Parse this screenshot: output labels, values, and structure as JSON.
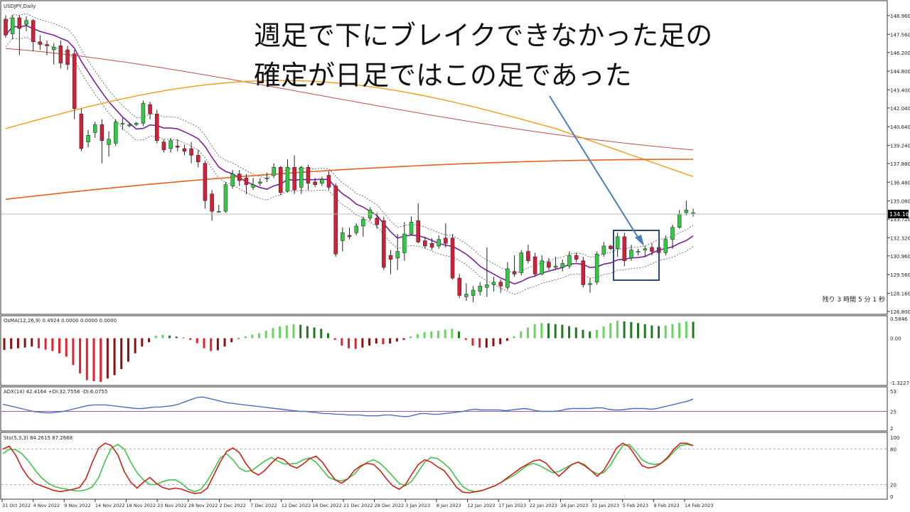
{
  "symbol_label": "USDJPY,Daily",
  "current_price_label": "134.164",
  "remaining_time_label": "残り 3 時間 5 分 1 秒",
  "annotation": {
    "line1": "週足で下にブレイクできなかった足の",
    "line2": "確定が日足ではこの足であった"
  },
  "colors": {
    "up_candle": "#2ecc40",
    "down_candle": "#d0203a",
    "ma_purple": "#7b1fa2",
    "ma_brown": "#c0504d",
    "ma_orange": "#f39c12",
    "ma_dark_orange": "#e8601c",
    "annotation_arrow": "#4a7cc0",
    "adx_line": "#4a6fbf",
    "sto_main": "#d0201a",
    "sto_signal": "#44c24a",
    "osma_pos_light": "#66d65c",
    "osma_pos_dark": "#1f7a1f",
    "osma_neg_light": "#e8202a",
    "osma_neg_dark": "#8b1010"
  },
  "chart_data": [
    {
      "type": "candlestick",
      "title": "USDJPY,Daily",
      "y_ticks": [
        "148.960",
        "147.560",
        "146.200",
        "144.800",
        "143.400",
        "142.040",
        "140.640",
        "139.240",
        "137.880",
        "136.480",
        "135.080",
        "133.720",
        "132.320",
        "130.960",
        "129.560",
        "128.160",
        "126.800"
      ],
      "ylim": [
        126.8,
        148.96
      ],
      "x_ticks": [
        "31 Oct 2022",
        "4 Nov 2022",
        "9 Nov 2022",
        "14 Nov 2022",
        "18 Nov 2022",
        "23 Nov 2022",
        "28 Nov 2022",
        "2 Dec 2022",
        "7 Dec 2022",
        "12 Dec 2022",
        "16 Dec 2022",
        "21 Dec 2022",
        "28 Dec 2022",
        "3 Jan 2023",
        "8 Jan 2023",
        "12 Jan 2023",
        "17 Jan 2023",
        "22 Jan 2023",
        "26 Jan 2023",
        "31 Jan 2023",
        "5 Feb 2023",
        "9 Feb 2023",
        "14 Feb 2023"
      ],
      "candles": [
        [
          148.7,
          147.5,
          149.0,
          147.3
        ],
        [
          147.6,
          148.8,
          149.0,
          147.2
        ],
        [
          148.8,
          148.0,
          149.0,
          146.0
        ],
        [
          148.3,
          148.6,
          148.9,
          147.8
        ],
        [
          148.6,
          147.0,
          148.7,
          146.3
        ],
        [
          147.0,
          146.8,
          147.5,
          146.4
        ],
        [
          146.8,
          146.7,
          147.1,
          146.0
        ],
        [
          146.4,
          146.6,
          146.9,
          145.3
        ],
        [
          146.7,
          145.4,
          147.1,
          145.0
        ],
        [
          146.4,
          145.3,
          146.7,
          144.9
        ],
        [
          146.1,
          142.0,
          146.4,
          141.2
        ],
        [
          141.6,
          139.0,
          142.0,
          138.8
        ],
        [
          139.5,
          140.0,
          140.4,
          139.1
        ],
        [
          140.2,
          140.8,
          141.0,
          139.8
        ],
        [
          140.8,
          139.6,
          141.2,
          137.9
        ],
        [
          139.3,
          139.7,
          140.3,
          138.4
        ],
        [
          139.4,
          141.0,
          141.2,
          139.2
        ],
        [
          140.9,
          140.9,
          141.3,
          140.4
        ],
        [
          140.7,
          140.8,
          140.9,
          140.6
        ],
        [
          140.8,
          140.9,
          141.0,
          140.7
        ],
        [
          140.9,
          142.4,
          142.6,
          140.7
        ],
        [
          142.3,
          141.6,
          142.5,
          141.2
        ],
        [
          141.6,
          139.6,
          141.9,
          139.4
        ],
        [
          139.5,
          138.9,
          139.7,
          138.7
        ],
        [
          139.0,
          139.6,
          139.8,
          138.7
        ],
        [
          139.2,
          139.1,
          139.7,
          138.8
        ],
        [
          139.0,
          138.8,
          139.3,
          138.5
        ],
        [
          139.0,
          138.5,
          139.5,
          137.9
        ],
        [
          138.5,
          138.0,
          138.9,
          137.6
        ],
        [
          137.9,
          135.1,
          138.1,
          134.5
        ],
        [
          135.6,
          134.3,
          135.9,
          133.6
        ],
        [
          134.3,
          134.3,
          134.8,
          134.2
        ],
        [
          134.3,
          136.3,
          136.5,
          134.2
        ],
        [
          136.2,
          137.1,
          137.4,
          136.0
        ],
        [
          137.1,
          136.6,
          137.4,
          136.2
        ],
        [
          136.8,
          136.3,
          137.1,
          135.6
        ],
        [
          136.1,
          136.3,
          136.8,
          135.9
        ],
        [
          136.4,
          136.5,
          136.8,
          136.2
        ],
        [
          136.8,
          136.8,
          137.2,
          136.5
        ],
        [
          137.0,
          137.6,
          137.9,
          136.8
        ],
        [
          137.6,
          135.7,
          137.7,
          135.5
        ],
        [
          135.8,
          137.6,
          138.2,
          135.7
        ],
        [
          137.6,
          135.9,
          138.5,
          135.6
        ],
        [
          136.1,
          137.6,
          137.7,
          135.6
        ],
        [
          137.6,
          136.4,
          137.8,
          135.9
        ],
        [
          136.5,
          136.3,
          136.8,
          136.1
        ],
        [
          136.4,
          136.7,
          136.9,
          136.2
        ],
        [
          137.0,
          136.1,
          137.3,
          135.9
        ],
        [
          136.2,
          131.1,
          136.4,
          130.9
        ],
        [
          132.1,
          132.7,
          133.1,
          131.3
        ],
        [
          132.5,
          132.4,
          133.1,
          132.2
        ],
        [
          132.7,
          133.2,
          133.4,
          132.5
        ],
        [
          133.2,
          133.7,
          133.9,
          132.4
        ],
        [
          133.8,
          134.4,
          134.6,
          133.6
        ],
        [
          133.8,
          133.3,
          134.2,
          133.0
        ],
        [
          133.6,
          130.1,
          133.9,
          129.9
        ],
        [
          131.0,
          130.7,
          131.4,
          129.6
        ],
        [
          130.8,
          131.3,
          132.6,
          129.9
        ],
        [
          131.2,
          132.6,
          133.5,
          130.6
        ],
        [
          132.6,
          133.5,
          133.9,
          132.5
        ],
        [
          133.6,
          132.0,
          134.9,
          131.9
        ],
        [
          132.1,
          131.7,
          132.4,
          131.5
        ],
        [
          131.9,
          131.6,
          132.3,
          131.4
        ],
        [
          131.7,
          132.2,
          132.5,
          131.5
        ],
        [
          132.3,
          131.9,
          133.4,
          131.6
        ],
        [
          132.3,
          129.3,
          132.6,
          129.2
        ],
        [
          129.3,
          128.0,
          129.6,
          127.8
        ],
        [
          127.9,
          128.1,
          128.9,
          127.6
        ],
        [
          128.0,
          128.4,
          128.7,
          127.5
        ],
        [
          128.3,
          128.7,
          129.0,
          128.0
        ],
        [
          128.6,
          128.8,
          131.6,
          127.9
        ],
        [
          128.8,
          129.0,
          129.4,
          128.3
        ],
        [
          129.0,
          128.7,
          129.2,
          128.2
        ],
        [
          128.6,
          130.0,
          130.5,
          128.4
        ],
        [
          129.8,
          129.6,
          131.0,
          129.4
        ],
        [
          129.7,
          131.2,
          131.4,
          129.5
        ],
        [
          131.3,
          130.6,
          131.8,
          130.4
        ],
        [
          130.9,
          129.6,
          131.2,
          129.4
        ],
        [
          129.6,
          130.6,
          131.0,
          129.5
        ],
        [
          130.5,
          130.1,
          130.8,
          129.9
        ],
        [
          130.1,
          130.2,
          130.9,
          130.0
        ],
        [
          130.1,
          130.4,
          130.7,
          129.8
        ],
        [
          130.2,
          131.0,
          131.3,
          130.0
        ],
        [
          131.0,
          130.7,
          131.2,
          130.5
        ],
        [
          130.6,
          128.8,
          130.9,
          128.6
        ],
        [
          128.8,
          128.9,
          129.3,
          128.2
        ],
        [
          129.0,
          131.1,
          131.3,
          128.8
        ],
        [
          131.1,
          131.7,
          132.0,
          130.9
        ],
        [
          131.7,
          131.5,
          131.8,
          131.4
        ],
        [
          131.5,
          132.4,
          132.7,
          130.9
        ],
        [
          132.4,
          130.6,
          132.7,
          130.2
        ],
        [
          130.8,
          131.4,
          131.8,
          130.6
        ],
        [
          131.3,
          131.3,
          131.5,
          131.0
        ],
        [
          131.4,
          131.5,
          131.7,
          130.9
        ],
        [
          131.6,
          131.3,
          131.9,
          131.0
        ],
        [
          131.6,
          131.2,
          131.9,
          131.1
        ],
        [
          131.2,
          132.2,
          132.5,
          131.0
        ],
        [
          132.2,
          133.1,
          133.3,
          131.5
        ],
        [
          133.1,
          134.1,
          134.4,
          133.0
        ],
        [
          134.2,
          134.4,
          135.1,
          134.0
        ],
        [
          134.1,
          134.2,
          134.5,
          133.9
        ]
      ]
    },
    {
      "type": "bar",
      "title": "OsMA(12,26,9) 0.4924 0.0000 0.0000 0.0000",
      "y_ticks": [
        "0.5846",
        "0.00",
        "-1.3227"
      ],
      "ylim": [
        -1.3227,
        0.5846
      ],
      "values": [
        -0.35,
        -0.32,
        -0.3,
        -0.28,
        -0.25,
        -0.3,
        -0.34,
        -0.38,
        -0.45,
        -0.55,
        -0.8,
        -1.05,
        -1.25,
        -1.28,
        -1.3,
        -1.2,
        -1.1,
        -0.92,
        -0.7,
        -0.45,
        -0.25,
        -0.12,
        0.08,
        0.1,
        0.08,
        0.05,
        0.02,
        -0.05,
        -0.15,
        -0.3,
        -0.38,
        -0.36,
        -0.25,
        -0.12,
        -0.02,
        0.06,
        0.1,
        0.15,
        0.22,
        0.3,
        0.35,
        0.38,
        0.42,
        0.4,
        0.36,
        0.32,
        0.28,
        0.15,
        -0.05,
        -0.22,
        -0.3,
        -0.32,
        -0.28,
        -0.22,
        -0.16,
        -0.18,
        -0.16,
        -0.1,
        -0.05,
        0.05,
        0.12,
        0.18,
        0.2,
        0.22,
        0.26,
        0.28,
        0.2,
        -0.05,
        -0.22,
        -0.28,
        -0.28,
        -0.24,
        -0.18,
        -0.08,
        0.06,
        0.2,
        0.32,
        0.42,
        0.45,
        0.44,
        0.42,
        0.4,
        0.36,
        0.32,
        0.25,
        0.2,
        0.25,
        0.35,
        0.45,
        0.52,
        0.5,
        0.48,
        0.45,
        0.42,
        0.38,
        0.36,
        0.38,
        0.42,
        0.46,
        0.5,
        0.49
      ]
    },
    {
      "type": "line",
      "title": "ADX(14) 42.4164 +DI:32.7558 -DI:6.0755",
      "y_ticks": [
        "53",
        "25",
        "2"
      ],
      "ylim": [
        2,
        53
      ],
      "reference_line": 25,
      "values": [
        35,
        33,
        31,
        29,
        27,
        25,
        24,
        23,
        23,
        24,
        25,
        27,
        29,
        31,
        33,
        34,
        34,
        34,
        33,
        32,
        31,
        30,
        29,
        29,
        30,
        31,
        31,
        32,
        33,
        35,
        38,
        41,
        44,
        45,
        43,
        41,
        39,
        37,
        36,
        35,
        34,
        33,
        32,
        31,
        30,
        29,
        28,
        27,
        26,
        25,
        25,
        24,
        23,
        22,
        22,
        21,
        21,
        20,
        20,
        20,
        19,
        19,
        19,
        20,
        20,
        19,
        18,
        18,
        20,
        22,
        22,
        21,
        21,
        22,
        23,
        24,
        25,
        27,
        28,
        27,
        27,
        27,
        27,
        26,
        27,
        28,
        29,
        28,
        26,
        25,
        25,
        25,
        26,
        28,
        29,
        29,
        29,
        29,
        30,
        30,
        28,
        27,
        27,
        28,
        29,
        29,
        29,
        28,
        29,
        31,
        33,
        35,
        37,
        39,
        42
      ]
    },
    {
      "type": "line",
      "title": "Sto(5,3,3) 84.2615 87.2668",
      "y_ticks": [
        "100",
        "80",
        "20",
        "0"
      ],
      "ylim": [
        0,
        100
      ],
      "reference_lines": [
        80,
        20
      ],
      "series": [
        {
          "values": [
            72,
            80,
            79,
            72,
            60,
            45,
            32,
            23,
            17,
            14,
            12,
            10,
            9,
            11,
            16,
            32,
            60,
            82,
            88,
            80,
            58,
            40,
            28,
            20,
            20,
            25,
            28,
            28,
            22,
            12,
            8,
            12,
            26,
            45,
            65,
            72,
            62,
            48,
            42,
            44,
            52,
            60,
            66,
            60,
            55,
            55,
            56,
            62,
            65,
            58,
            45,
            32,
            28,
            26,
            30,
            38,
            50,
            58,
            62,
            56,
            46,
            34,
            22,
            18,
            26,
            42,
            58,
            66,
            64,
            56,
            46,
            30,
            16,
            10,
            8,
            10,
            14,
            18,
            24,
            30,
            36,
            44,
            52,
            56,
            52,
            46,
            40,
            42,
            48,
            54,
            58,
            54,
            44,
            38,
            40,
            52,
            70,
            86,
            88,
            76,
            62,
            56,
            54,
            56,
            64,
            76,
            86,
            88,
            86
          ]
        },
        {
          "values": [
            80,
            85,
            70,
            48,
            32,
            22,
            18,
            14,
            10,
            8,
            10,
            12,
            15,
            30,
            58,
            82,
            90,
            86,
            70,
            42,
            24,
            14,
            24,
            32,
            22,
            15,
            12,
            14,
            12,
            8,
            5,
            6,
            14,
            36,
            58,
            76,
            82,
            74,
            56,
            42,
            36,
            44,
            56,
            66,
            62,
            52,
            48,
            55,
            64,
            68,
            58,
            42,
            28,
            22,
            30,
            44,
            52,
            56,
            54,
            44,
            30,
            18,
            12,
            20,
            38,
            54,
            62,
            58,
            50,
            44,
            30,
            15,
            7,
            6,
            8,
            10,
            14,
            18,
            24,
            32,
            40,
            48,
            54,
            60,
            62,
            56,
            44,
            34,
            44,
            54,
            58,
            52,
            44,
            34,
            44,
            62,
            82,
            90,
            84,
            68,
            52,
            48,
            50,
            56,
            66,
            80,
            90,
            90,
            86
          ]
        }
      ]
    }
  ]
}
